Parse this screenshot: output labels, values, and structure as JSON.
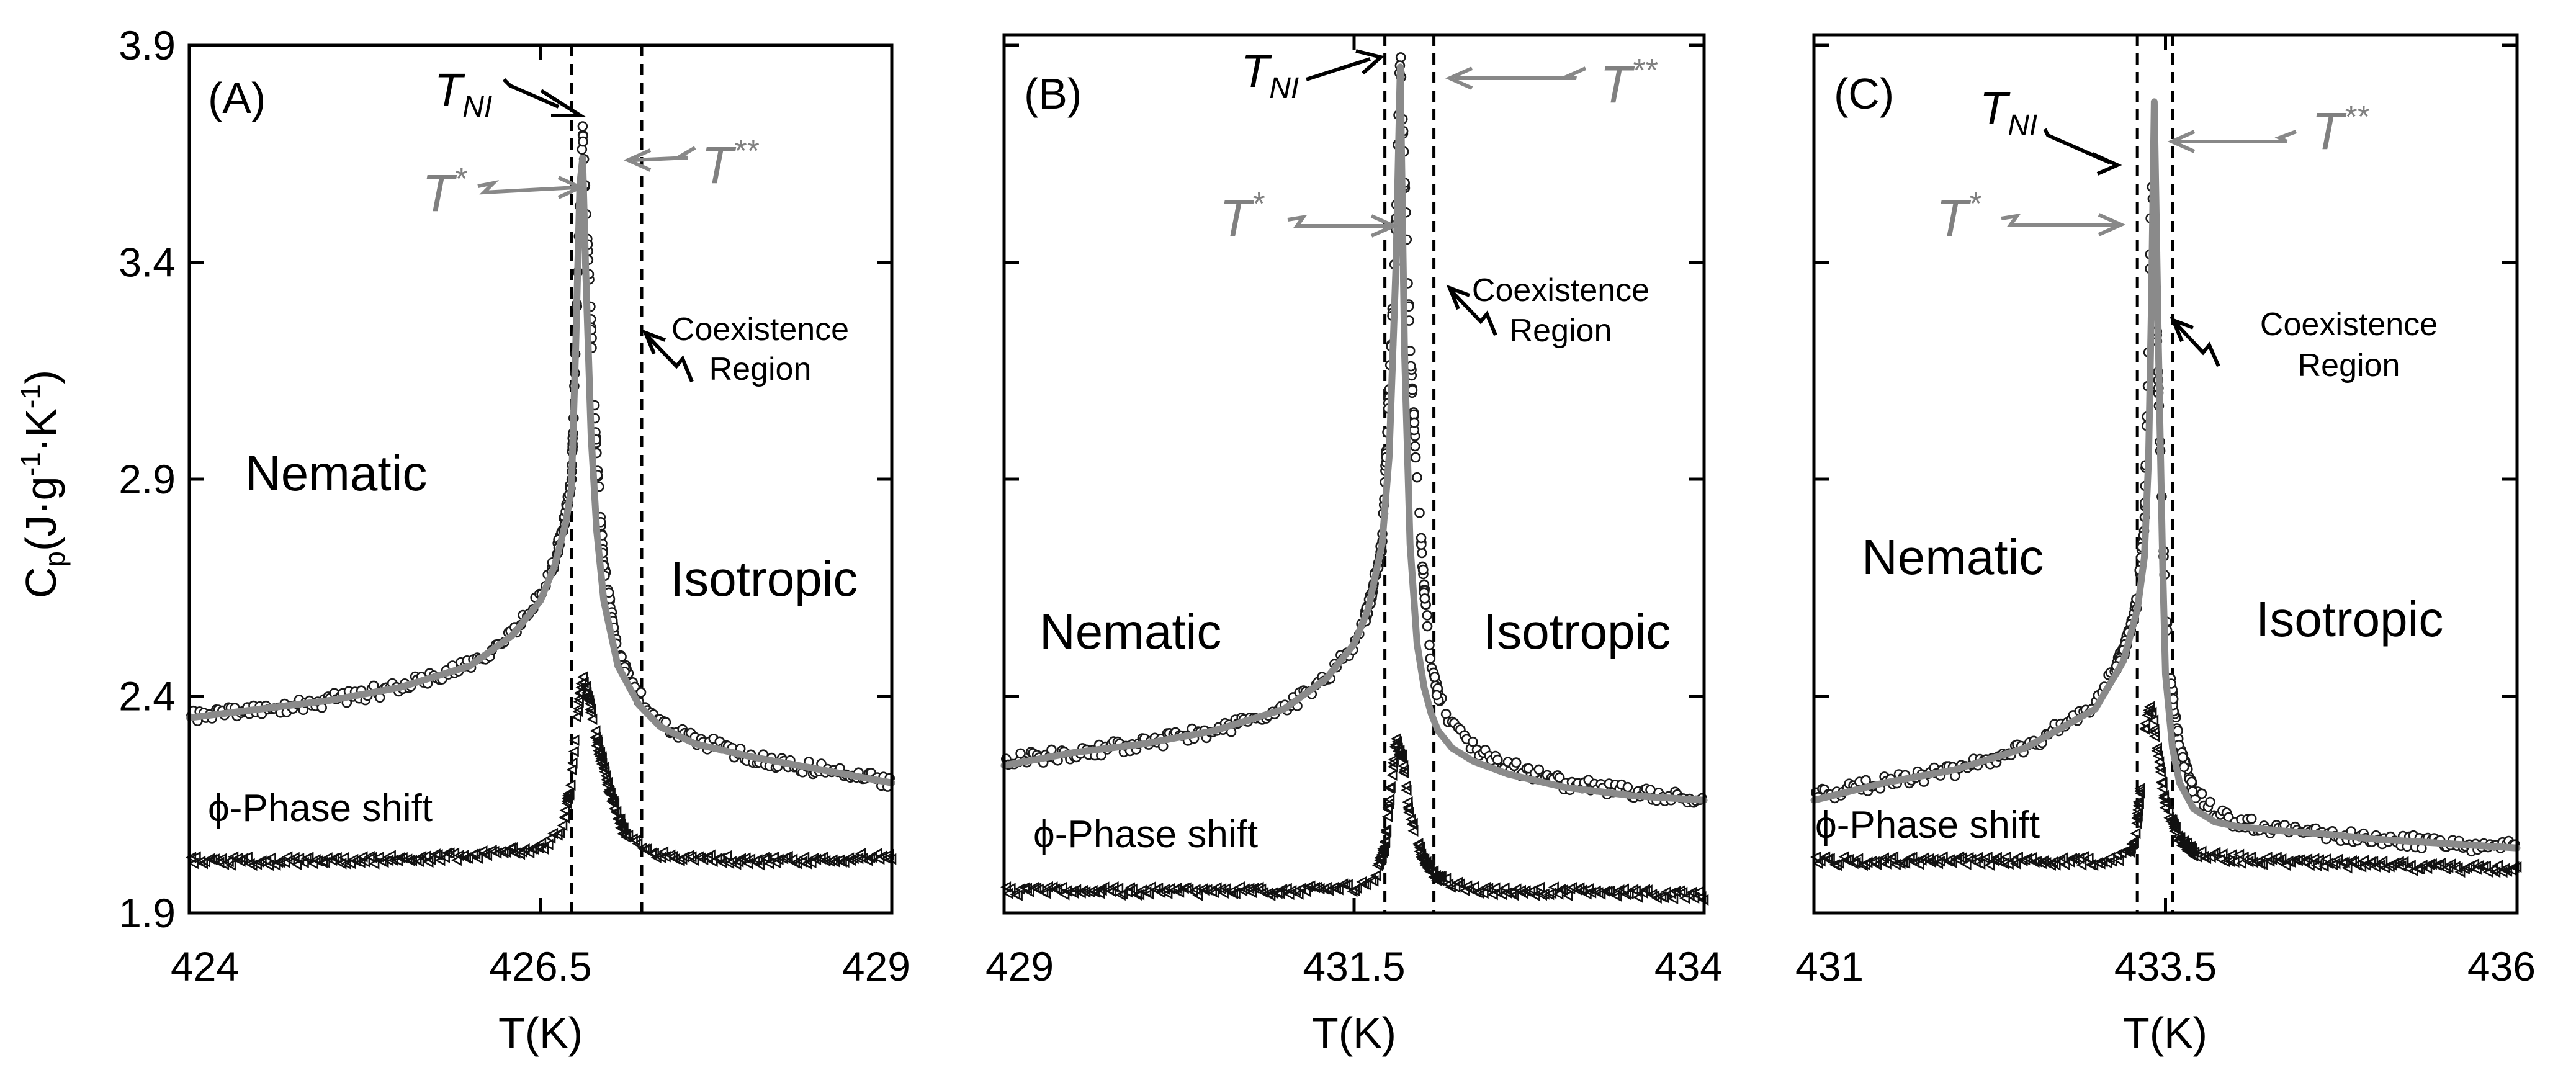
{
  "figure": {
    "y_axis_label": "C_p(J·g⁻¹·K⁻¹)",
    "y_axis_label_parts": {
      "base": "C",
      "sub": "p",
      "units_a": "(J·g",
      "sup_a": "-1",
      "units_b": "·K",
      "sup_b": "-1",
      "units_c": ")"
    },
    "x_axis_label": "T(K)"
  },
  "chart_data": [
    {
      "type": "scatter",
      "panel_label": "(A)",
      "xlabel": "T(K)",
      "ylabel": "Cp(J·g-1·K-1)",
      "xlim": [
        424,
        429
      ],
      "ylim": [
        1.9,
        3.9
      ],
      "x_ticks": [
        424,
        426.5,
        429
      ],
      "x_tick_labels": [
        "424",
        "426.5",
        "429"
      ],
      "y_ticks": [
        1.9,
        2.4,
        2.9,
        3.4,
        3.9
      ],
      "y_tick_labels": [
        "1.9",
        "2.4",
        "2.9",
        "3.4",
        "3.9"
      ],
      "vertical_lines": [
        426.72,
        427.22
      ],
      "series": [
        {
          "name": "Cp data",
          "x": [
            424.0,
            424.5,
            425.0,
            425.5,
            426.0,
            426.3,
            426.5,
            426.6,
            426.68,
            426.72,
            426.75,
            426.78,
            426.8,
            426.82,
            426.86,
            426.9,
            426.95,
            427.05,
            427.2,
            427.35,
            427.6,
            428.0,
            428.5,
            429.0
          ],
          "values": [
            2.35,
            2.37,
            2.39,
            2.42,
            2.47,
            2.54,
            2.63,
            2.71,
            2.82,
            2.9,
            3.2,
            3.55,
            3.7,
            3.55,
            3.25,
            2.95,
            2.7,
            2.5,
            2.4,
            2.34,
            2.3,
            2.26,
            2.23,
            2.2
          ]
        },
        {
          "name": "Cp fit",
          "x": [
            424.0,
            424.5,
            425.0,
            425.5,
            426.0,
            426.3,
            426.5,
            426.6,
            426.68,
            426.72,
            426.75,
            426.78,
            426.8,
            426.82,
            426.86,
            426.9,
            426.95,
            427.05,
            427.2,
            427.35,
            427.6,
            428.0,
            428.5,
            429.0
          ],
          "values": [
            2.35,
            2.37,
            2.39,
            2.42,
            2.47,
            2.54,
            2.62,
            2.7,
            2.8,
            2.88,
            3.2,
            3.58,
            3.64,
            3.4,
            3.0,
            2.78,
            2.62,
            2.47,
            2.38,
            2.33,
            2.29,
            2.26,
            2.23,
            2.2
          ]
        },
        {
          "name": "phase shift",
          "x": [
            424.0,
            425.0,
            426.0,
            426.5,
            426.65,
            426.72,
            426.76,
            426.8,
            426.84,
            426.9,
            427.0,
            427.1,
            427.25,
            427.5,
            428.0,
            429.0
          ],
          "values": [
            2.02,
            2.02,
            2.03,
            2.05,
            2.09,
            2.2,
            2.35,
            2.44,
            2.4,
            2.3,
            2.17,
            2.08,
            2.04,
            2.03,
            2.02,
            2.03
          ]
        }
      ],
      "annotations": {
        "tnl": {
          "base": "T",
          "sub": "NI"
        },
        "tstar": {
          "base": "T",
          "sup": "*"
        },
        "tstarstar": {
          "base": "T",
          "sup": "**"
        },
        "coexistence_line1": "Coexistence",
        "coexistence_line2": "Region",
        "nematic": "Nematic",
        "isotropic": "Isotropic",
        "phase_shift": "ϕ-Phase shift"
      }
    },
    {
      "type": "scatter",
      "panel_label": "(B)",
      "xlabel": "T(K)",
      "ylabel": "Cp(J·g-1·K-1)",
      "xlim": [
        429,
        434
      ],
      "ylim": [
        1.9,
        3.9
      ],
      "x_ticks": [
        429,
        431.5,
        434
      ],
      "x_tick_labels": [
        "429",
        "431.5",
        "434"
      ],
      "y_ticks": [
        1.9,
        2.4,
        2.9,
        3.4,
        3.9
      ],
      "y_tick_labels": [
        "",
        "",
        "",
        "",
        ""
      ],
      "vertical_lines": [
        431.72,
        432.07
      ],
      "series": [
        {
          "name": "Cp data",
          "x": [
            429.0,
            429.5,
            430.0,
            430.5,
            431.0,
            431.3,
            431.5,
            431.6,
            431.7,
            431.75,
            431.8,
            431.83,
            431.86,
            431.9,
            431.95,
            432.0,
            432.05,
            432.1,
            432.2,
            432.35,
            432.6,
            433.0,
            433.5,
            434.0
          ],
          "values": [
            2.25,
            2.27,
            2.29,
            2.32,
            2.37,
            2.44,
            2.52,
            2.6,
            2.75,
            3.1,
            3.5,
            3.9,
            3.6,
            3.2,
            2.9,
            2.65,
            2.48,
            2.4,
            2.33,
            2.28,
            2.24,
            2.2,
            2.18,
            2.16
          ]
        },
        {
          "name": "Cp fit",
          "x": [
            429.0,
            429.5,
            430.0,
            430.5,
            431.0,
            431.3,
            431.5,
            431.6,
            431.7,
            431.75,
            431.8,
            431.83,
            431.86,
            431.9,
            431.95,
            432.0,
            432.05,
            432.1,
            432.2,
            432.35,
            432.6,
            433.0,
            433.5,
            434.0
          ],
          "values": [
            2.24,
            2.27,
            2.29,
            2.32,
            2.37,
            2.44,
            2.52,
            2.6,
            2.75,
            2.95,
            3.4,
            3.85,
            3.2,
            2.75,
            2.52,
            2.42,
            2.36,
            2.32,
            2.28,
            2.25,
            2.22,
            2.19,
            2.17,
            2.16
          ]
        },
        {
          "name": "phase shift",
          "x": [
            429.0,
            430.0,
            431.0,
            431.5,
            431.65,
            431.72,
            431.76,
            431.8,
            431.85,
            431.9,
            432.0,
            432.1,
            432.25,
            432.5,
            433.0,
            434.0
          ],
          "values": [
            1.95,
            1.95,
            1.95,
            1.96,
            1.98,
            2.05,
            2.18,
            2.3,
            2.25,
            2.12,
            2.02,
            1.98,
            1.96,
            1.95,
            1.95,
            1.94
          ]
        }
      ],
      "annotations": {
        "tnl": {
          "base": "T",
          "sub": "NI"
        },
        "tstar": {
          "base": "T",
          "sup": "*"
        },
        "tstarstar": {
          "base": "T",
          "sup": "**"
        },
        "coexistence_line1": "Coexistence",
        "coexistence_line2": "Region",
        "nematic": "Nematic",
        "isotropic": "Isotropic",
        "phase_shift": "ϕ-Phase shift"
      }
    },
    {
      "type": "scatter",
      "panel_label": "(C)",
      "xlabel": "T(K)",
      "ylabel": "Cp(J·g-1·K-1)",
      "xlim": [
        431,
        436
      ],
      "ylim": [
        1.9,
        3.9
      ],
      "x_ticks": [
        431,
        433.5,
        436
      ],
      "x_tick_labels": [
        "431",
        "433.5",
        "436"
      ],
      "y_ticks": [
        1.9,
        2.4,
        2.9,
        3.4,
        3.9
      ],
      "y_tick_labels": [
        "",
        "",
        "",
        "",
        ""
      ],
      "vertical_lines": [
        433.3,
        433.55
      ],
      "series": [
        {
          "name": "Cp data",
          "x": [
            431.0,
            431.5,
            432.0,
            432.5,
            433.0,
            433.2,
            433.3,
            433.35,
            433.38,
            433.4,
            433.42,
            433.45,
            433.48,
            433.5,
            433.55,
            433.6,
            433.7,
            433.85,
            434.0,
            434.3,
            434.7,
            435.0,
            435.5,
            436.0
          ],
          "values": [
            2.17,
            2.2,
            2.23,
            2.28,
            2.38,
            2.5,
            2.62,
            2.8,
            3.2,
            3.6,
            3.5,
            3.1,
            2.8,
            2.6,
            2.4,
            2.28,
            2.18,
            2.13,
            2.11,
            2.09,
            2.08,
            2.07,
            2.06,
            2.05
          ]
        },
        {
          "name": "Cp fit",
          "x": [
            431.0,
            431.5,
            432.0,
            432.5,
            433.0,
            433.2,
            433.3,
            433.35,
            433.38,
            433.4,
            433.42,
            433.45,
            433.48,
            433.5,
            433.55,
            433.6,
            433.7,
            433.85,
            434.0,
            434.3,
            434.7,
            435.0,
            435.5,
            436.0
          ],
          "values": [
            2.16,
            2.2,
            2.23,
            2.28,
            2.37,
            2.48,
            2.6,
            2.72,
            2.95,
            3.3,
            3.77,
            3.2,
            2.7,
            2.45,
            2.28,
            2.2,
            2.14,
            2.11,
            2.1,
            2.09,
            2.08,
            2.07,
            2.06,
            2.05
          ]
        },
        {
          "name": "phase shift",
          "x": [
            431.0,
            432.0,
            433.0,
            433.2,
            433.28,
            433.33,
            433.36,
            433.4,
            433.44,
            433.5,
            433.6,
            433.7,
            433.85,
            434.2,
            435.0,
            436.0
          ],
          "values": [
            2.02,
            2.02,
            2.02,
            2.03,
            2.06,
            2.2,
            2.33,
            2.38,
            2.28,
            2.15,
            2.07,
            2.04,
            2.03,
            2.02,
            2.01,
            2.0
          ]
        }
      ],
      "annotations": {
        "tnl": {
          "base": "T",
          "sub": "NI"
        },
        "tstar": {
          "base": "T",
          "sup": "*"
        },
        "tstarstar": {
          "base": "T",
          "sup": "**"
        },
        "coexistence_line1": "Coexistence",
        "coexistence_line2": "Region",
        "nematic": "Nematic",
        "isotropic": "Isotropic",
        "phase_shift": "ϕ-Phase shift"
      }
    }
  ]
}
